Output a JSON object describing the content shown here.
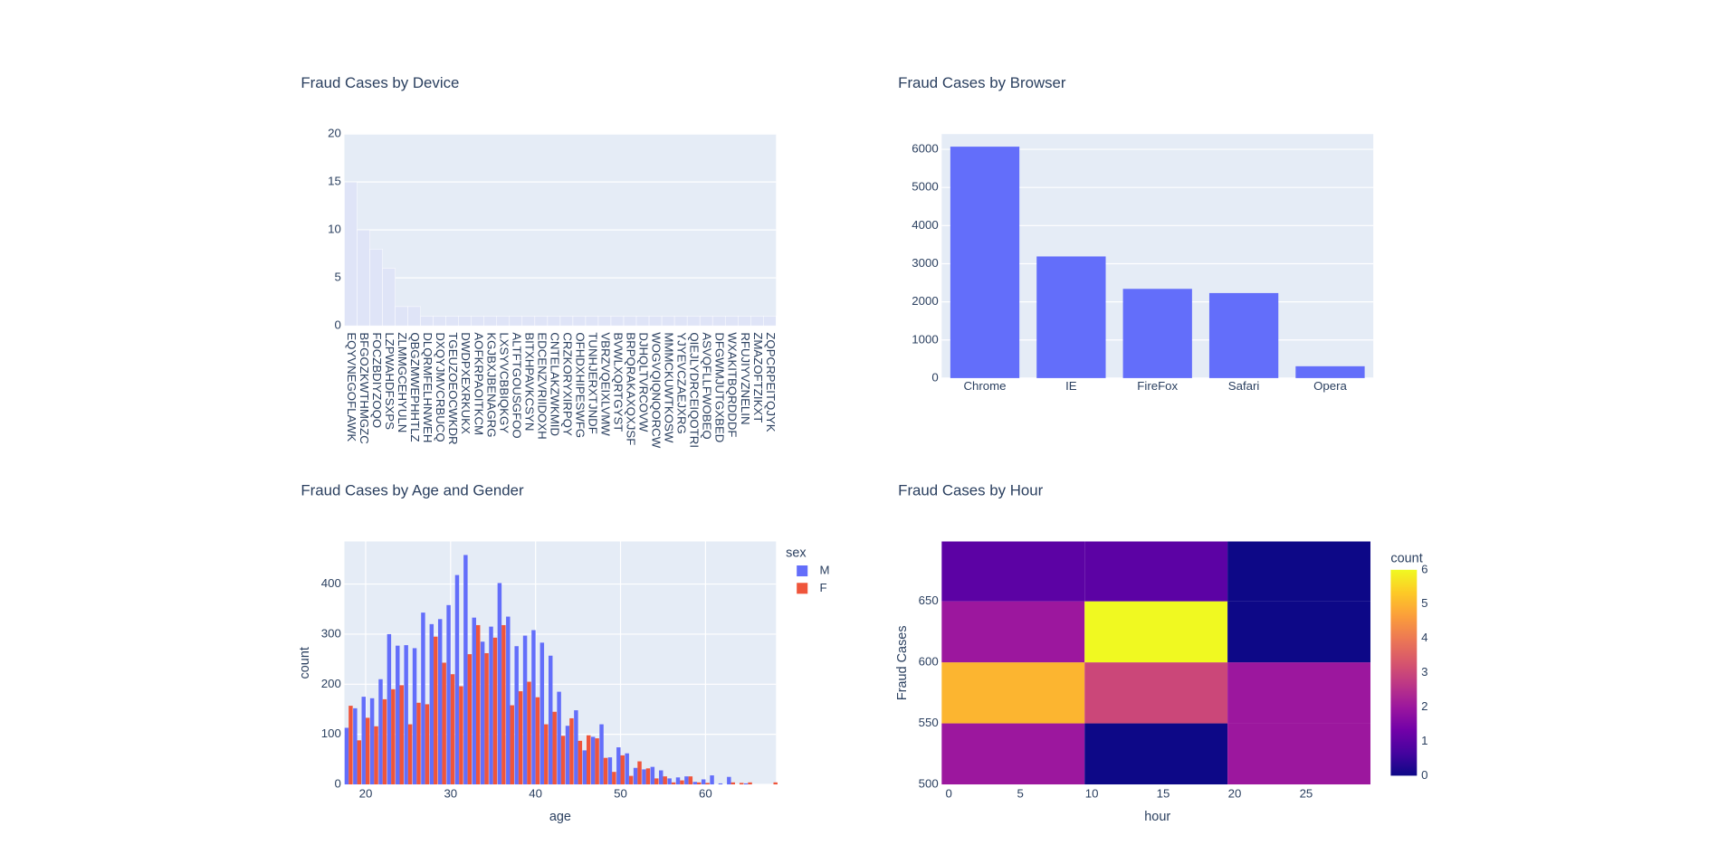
{
  "chart_data": [
    {
      "type": "bar",
      "title": "Fraud Cases by Device",
      "categories": [
        "EQYVNEGOFLAWK",
        "BFGOZKWTHMGZC",
        "FOCZBDIYZOQO",
        "LZPWAHDFSXPS",
        "ZLMMGCEHYULN",
        "QBGZMWEPHHTLZ",
        "DLQRMFELHNWEH",
        "DXQYJMVCRBUCQ",
        "TGEUZOEOCWKDR",
        "DWDPXEXRKUKX",
        "AOFKRPAOITKCM",
        "KGJBXJBENAGRG",
        "LXSYVCBBIQKGY",
        "ALTFTGOUSGFOO",
        "BITXHPAVKCSYN",
        "EDCENZVRIIDOXH",
        "CNTELAKZWKMID",
        "CRZKORYXIRPQY",
        "OFHDXHIPESWFG",
        "TUNHJERXTJNDF",
        "VBRZVQEIXLVMW",
        "BVWLXQRTGYST",
        "BRPQRAKAXQXJSF",
        "DJHQLTVRCOVW",
        "WOGVQIQNQORCW",
        "MMMCKUWTKOSW",
        "YJYEVCZAEJXRG",
        "QIEJLYDRCEIQOTRI",
        "ASVQFLLFWOBEQ",
        "DFGWMJUTGXBED",
        "WXAKITBQRDDDF",
        "RFUJIYVZNELIN",
        "ZMAZOFTZIKXT",
        "ZQPCRPEITQJYK"
      ],
      "values": [
        15,
        10,
        8,
        6,
        2,
        2,
        1,
        1,
        1,
        1,
        1,
        1,
        1,
        1,
        1,
        1,
        1,
        1,
        1,
        1,
        1,
        1,
        1,
        1,
        1,
        1,
        1,
        1,
        1,
        1,
        1,
        1,
        1,
        1
      ],
      "color": "#dfe4f7",
      "ylim": [
        0,
        20
      ],
      "yticks": [
        0,
        5,
        10,
        15,
        20
      ],
      "grid": true
    },
    {
      "type": "bar",
      "title": "Fraud Cases by Browser",
      "categories": [
        "Chrome",
        "IE",
        "FireFox",
        "Safari",
        "Opera"
      ],
      "values": [
        6070,
        3190,
        2340,
        2230,
        310
      ],
      "color": "#636efa",
      "ylim": [
        0,
        6400
      ],
      "yticks": [
        0,
        1000,
        2000,
        3000,
        4000,
        5000,
        6000
      ],
      "grid": true
    },
    {
      "type": "grouped_histogram",
      "title": "Fraud Cases by Age and Gender",
      "x_label": "age",
      "y_label": "count",
      "legend_title": "sex",
      "x": [
        18,
        19,
        20,
        21,
        22,
        23,
        24,
        25,
        26,
        27,
        28,
        29,
        30,
        31,
        32,
        33,
        34,
        35,
        36,
        37,
        38,
        39,
        40,
        41,
        42,
        43,
        44,
        45,
        46,
        47,
        48,
        49,
        50,
        51,
        52,
        53,
        54,
        55,
        56,
        57,
        58,
        59,
        60,
        61,
        62,
        63,
        64,
        65,
        66,
        67,
        68
      ],
      "series": [
        {
          "name": "M",
          "color": "#636efa",
          "values": [
            113,
            152,
            175,
            172,
            210,
            300,
            277,
            278,
            272,
            343,
            320,
            330,
            358,
            418,
            458,
            333,
            285,
            315,
            402,
            335,
            276,
            297,
            308,
            283,
            257,
            185,
            117,
            148,
            68,
            95,
            120,
            54,
            74,
            62,
            33,
            30,
            35,
            28,
            12,
            14,
            16,
            5,
            10,
            18,
            2,
            15,
            0,
            2,
            0,
            0,
            0
          ]
        },
        {
          "name": "F",
          "color": "#ef553b",
          "values": [
            157,
            88,
            133,
            116,
            170,
            190,
            198,
            120,
            163,
            160,
            295,
            243,
            220,
            196,
            260,
            318,
            262,
            293,
            318,
            158,
            186,
            205,
            174,
            120,
            145,
            97,
            132,
            87,
            98,
            92,
            53,
            25,
            58,
            17,
            46,
            32,
            12,
            16,
            4,
            8,
            16,
            4,
            3,
            0,
            0,
            4,
            3,
            4,
            0,
            0,
            4
          ]
        }
      ],
      "xlim": [
        17.5,
        68.3
      ],
      "xticks": [
        20,
        30,
        40,
        50,
        60
      ],
      "ylim": [
        0,
        485
      ],
      "yticks": [
        0,
        100,
        200,
        300,
        400
      ],
      "grid": true
    },
    {
      "type": "heatmap",
      "title": "Fraud Cases by Hour",
      "x_label": "hour",
      "y_label": "Fraud Cases",
      "colorbar_title": "count",
      "xbins": [
        -0.5,
        9.5,
        19.5,
        29.5
      ],
      "ybins": [
        500,
        550,
        600,
        650,
        700
      ],
      "z": [
        [
          2,
          0,
          2
        ],
        [
          5,
          3,
          2
        ],
        [
          2,
          6,
          0
        ],
        [
          1,
          1,
          0
        ]
      ],
      "xlim": [
        -0.5,
        29.7
      ],
      "xticks": [
        0,
        5,
        10,
        15,
        20,
        25
      ],
      "ylim": [
        500,
        699
      ],
      "yticks": [
        500,
        550,
        600,
        650
      ],
      "zlim": [
        0,
        6
      ],
      "zticks": [
        0,
        1,
        2,
        3,
        4,
        5,
        6
      ],
      "colorscale": [
        "#0d0887",
        "#46039f",
        "#7201a8",
        "#9c179e",
        "#bd3786",
        "#d8576b",
        "#ed7953",
        "#fb9f3a",
        "#fdca26",
        "#f0f921"
      ]
    }
  ]
}
